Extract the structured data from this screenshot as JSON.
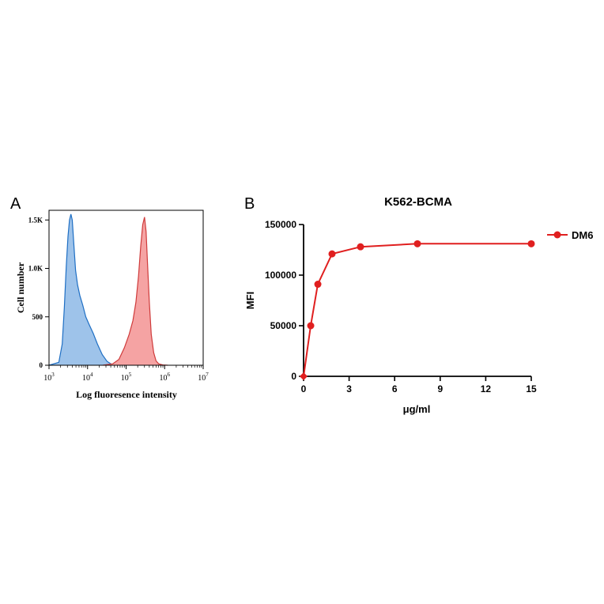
{
  "panels": [
    {
      "letter": "A"
    },
    {
      "letter": "B"
    }
  ],
  "chart_data": [
    {
      "type": "area",
      "title": "",
      "xlabel": "Log fluoresence intensity",
      "ylabel": "Cell number",
      "x_scale": "log",
      "xlim": [
        1000,
        10000000
      ],
      "ylim": [
        0,
        1600
      ],
      "x_ticks": [
        {
          "value": 1000,
          "base": "10",
          "exp": "3"
        },
        {
          "value": 10000,
          "base": "10",
          "exp": "4"
        },
        {
          "value": 100000,
          "base": "10",
          "exp": "5"
        },
        {
          "value": 1000000,
          "base": "10",
          "exp": "6"
        },
        {
          "value": 10000000,
          "base": "10",
          "exp": "7"
        }
      ],
      "y_ticks": [
        {
          "value": 0,
          "label": "0"
        },
        {
          "value": 500,
          "label": "500"
        },
        {
          "value": 1000,
          "label": "1.0K"
        },
        {
          "value": 1500,
          "label": "1.5K"
        }
      ],
      "series": [
        {
          "color": "#1f6fc4",
          "fill": "#9ec3ea",
          "x": [
            1000,
            1800,
            2200,
            2500,
            2800,
            3100,
            3400,
            3700,
            4000,
            4400,
            4900,
            5500,
            6300,
            7500,
            9000,
            11000,
            14000,
            18000,
            24000,
            32000,
            42000,
            60000,
            100000
          ],
          "y": [
            0,
            30,
            220,
            600,
            1020,
            1330,
            1500,
            1560,
            1500,
            1250,
            980,
            830,
            720,
            620,
            500,
            420,
            330,
            220,
            110,
            40,
            10,
            3,
            0
          ]
        },
        {
          "color": "#cf3b3b",
          "fill": "#f5a3a3",
          "x": [
            25000,
            45000,
            65000,
            90000,
            120000,
            150000,
            180000,
            210000,
            240000,
            270000,
            300000,
            330000,
            360000,
            400000,
            450000,
            520000,
            600000,
            700000,
            900000,
            1200000
          ],
          "y": [
            0,
            15,
            60,
            180,
            320,
            460,
            650,
            920,
            1230,
            1450,
            1530,
            1380,
            1050,
            650,
            320,
            130,
            45,
            15,
            3,
            0
          ]
        }
      ]
    },
    {
      "type": "line",
      "title": "K562-BCMA",
      "xlabel": "μg/ml",
      "ylabel": "MFI",
      "xlim": [
        0,
        15
      ],
      "ylim": [
        0,
        150000
      ],
      "x_ticks": [
        "0",
        "3",
        "6",
        "9",
        "12",
        "15"
      ],
      "y_ticks": [
        "0",
        "50000",
        "100000",
        "150000"
      ],
      "legend_position": "right",
      "series": [
        {
          "name": "DM6",
          "color": "#e01f1f",
          "x": [
            0,
            0.47,
            0.94,
            1.875,
            3.75,
            7.5,
            15
          ],
          "y": [
            0,
            50000,
            91000,
            121000,
            128000,
            131000,
            131000
          ]
        }
      ]
    }
  ]
}
